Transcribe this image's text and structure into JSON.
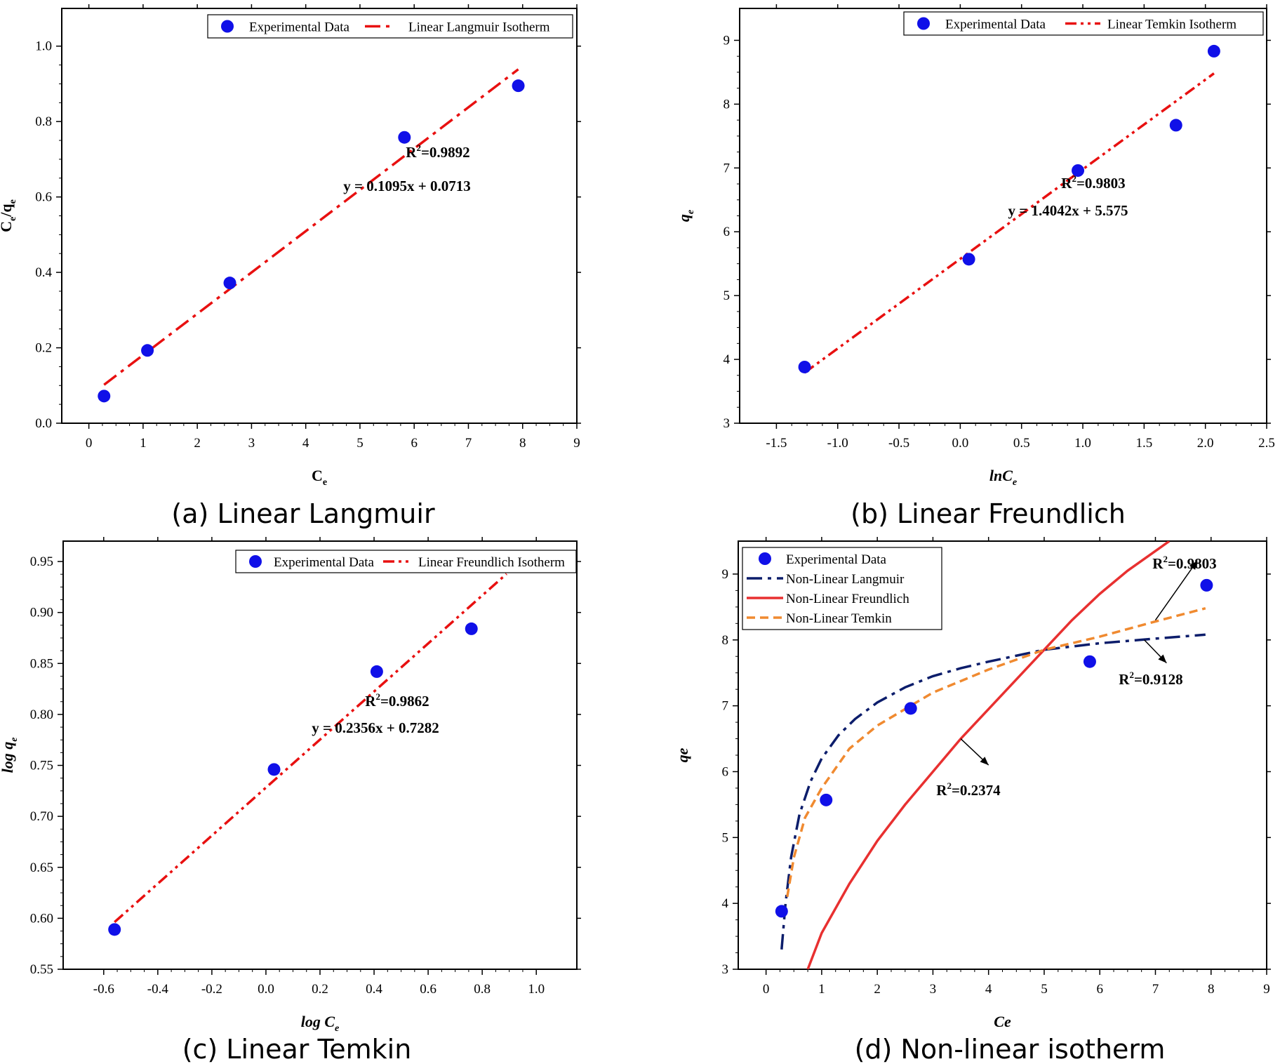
{
  "chart_data": [
    {
      "type": "scatter",
      "caption": "(a) Linear Langmuir",
      "xlabel": "C",
      "xlabel_sub": "e",
      "ylabel": "C",
      "ylabel_sub": "e",
      "ylabel_mid": "/q",
      "ylabel_sub2": "e",
      "xlim": [
        -0.5,
        9
      ],
      "ylim": [
        0,
        1.1
      ],
      "xticks": [
        0,
        1,
        2,
        3,
        4,
        5,
        6,
        7,
        8,
        9
      ],
      "yticks": [
        0.0,
        0.2,
        0.4,
        0.6,
        0.8,
        1.0
      ],
      "ytick_decimals": 1,
      "xtick_decimals": 0,
      "legend": {
        "placement": "top-right",
        "entries": [
          "Experimental Data",
          "Linear Langmuir Isotherm"
        ]
      },
      "series": [
        {
          "name": "Experimental Data",
          "kind": "points",
          "color": "#1010e8",
          "x": [
            0.28,
            1.08,
            2.6,
            5.82,
            7.92
          ],
          "y": [
            0.072,
            0.193,
            0.372,
            0.758,
            0.895
          ]
        },
        {
          "name": "Linear Langmuir Isotherm",
          "kind": "line",
          "dash": "dashdot",
          "color": "#e81010",
          "equation": {
            "slope": 0.1095,
            "intercept": 0.0713
          },
          "x_range": [
            0.28,
            7.92
          ]
        }
      ],
      "annotations": [
        {
          "text": "R",
          "sup": "2",
          "rest": "=0.9892",
          "at": [
            6.4,
            0.7
          ]
        },
        {
          "text": "y = 0.1095x + 0.0713",
          "at": [
            5.9,
            0.6
          ]
        }
      ]
    },
    {
      "type": "scatter",
      "caption": "(b) Linear Freundlich",
      "xlabel": "lnC",
      "xlabel_sub": "e",
      "ylabel": "q",
      "ylabel_sub": "e",
      "italic_labels": true,
      "xlim": [
        -1.8,
        2.5
      ],
      "ylim": [
        3,
        9.5
      ],
      "xticks": [
        -1.5,
        -1.0,
        -0.5,
        0.0,
        0.5,
        1.0,
        1.5,
        2.0,
        2.5
      ],
      "yticks": [
        3,
        4,
        5,
        6,
        7,
        8,
        9
      ],
      "xtick_decimals": 1,
      "ytick_decimals": 0,
      "legend": {
        "placement": "top-right",
        "entries": [
          "Experimental Data",
          "Linear Temkin Isotherm"
        ]
      },
      "series": [
        {
          "name": "Experimental Data",
          "kind": "points",
          "color": "#1010e8",
          "x": [
            -1.27,
            0.07,
            0.96,
            1.76,
            2.07
          ],
          "y": [
            3.88,
            5.57,
            6.96,
            7.67,
            8.83
          ]
        },
        {
          "name": "Linear Temkin Isotherm",
          "kind": "line",
          "dash": "dashdotdot",
          "color": "#e81010",
          "equation": {
            "slope": 1.4042,
            "intercept": 5.575
          },
          "x_range": [
            -1.27,
            2.07
          ]
        }
      ],
      "annotations": [
        {
          "text": "R",
          "sup": "2",
          "rest": "=0.9803",
          "at": [
            1.1,
            6.68
          ]
        },
        {
          "text": "y = 1.4042x + 5.575",
          "at": [
            0.88,
            6.3
          ]
        }
      ]
    },
    {
      "type": "scatter",
      "caption": "(c) Linear Temkin",
      "xlabel": "log C",
      "xlabel_sub": "e",
      "ylabel": "log q",
      "ylabel_sub": "e",
      "italic_labels": true,
      "xlim": [
        -0.75,
        1.15
      ],
      "ylim": [
        0.55,
        0.97
      ],
      "xticks": [
        -0.6,
        -0.4,
        -0.2,
        0.0,
        0.2,
        0.4,
        0.6,
        0.8,
        1.0
      ],
      "yticks": [
        0.55,
        0.6,
        0.65,
        0.7,
        0.75,
        0.8,
        0.85,
        0.9,
        0.95
      ],
      "xtick_decimals": 1,
      "ytick_decimals": 2,
      "legend": {
        "placement": "top-right",
        "entries": [
          "Experimental Data",
          "Linear Freundlich Isotherm"
        ]
      },
      "series": [
        {
          "name": "Experimental Data",
          "kind": "points",
          "color": "#1010e8",
          "x": [
            -0.56,
            0.03,
            0.41,
            0.76,
            0.89
          ],
          "y": [
            0.589,
            0.746,
            0.842,
            0.884,
            0.945
          ]
        },
        {
          "name": "Linear Freundlich Isotherm",
          "kind": "line",
          "dash": "dashdotdot",
          "color": "#e81010",
          "equation": {
            "slope": 0.2356,
            "intercept": 0.7282
          },
          "x_range": [
            -0.56,
            0.89
          ]
        }
      ],
      "annotations": [
        {
          "text": "R",
          "sup": "2",
          "rest": "=0.9862",
          "at": [
            0.44,
            0.817
          ]
        },
        {
          "text": "y = 0.2356x + 0.7282",
          "at": [
            0.37,
            0.79
          ]
        }
      ]
    },
    {
      "type": "line",
      "caption": "(d) Non-linear isotherm",
      "xlabel": "Ce",
      "ylabel": "qe",
      "italic_labels": true,
      "xlim": [
        -0.5,
        9
      ],
      "ylim": [
        3,
        9.5
      ],
      "xticks": [
        0,
        1,
        2,
        3,
        4,
        5,
        6,
        7,
        8,
        9
      ],
      "yticks": [
        3,
        4,
        5,
        6,
        7,
        8,
        9
      ],
      "xtick_decimals": 0,
      "ytick_decimals": 0,
      "legend": {
        "placement": "top-left",
        "entries": [
          "Experimental Data",
          "Non-Linear Langmuir",
          "Non-Linear Freundlich",
          "Non-Linear Temkin"
        ]
      },
      "series": [
        {
          "name": "Experimental Data",
          "kind": "points",
          "color": "#1010e8",
          "x": [
            0.28,
            1.08,
            2.6,
            5.82,
            7.92
          ],
          "y": [
            3.88,
            5.57,
            6.96,
            7.67,
            8.83
          ]
        },
        {
          "name": "Non-Linear Langmuir",
          "kind": "curve",
          "dash": "dashdot",
          "color": "#0c1d6b",
          "x": [
            0.28,
            0.35,
            0.45,
            0.6,
            0.8,
            1.0,
            1.3,
            1.6,
            2.0,
            2.5,
            3.0,
            3.5,
            4.0,
            5.0,
            6.0,
            7.0,
            7.9
          ],
          "y": [
            3.3,
            4.0,
            4.7,
            5.35,
            5.85,
            6.2,
            6.55,
            6.8,
            7.05,
            7.28,
            7.45,
            7.57,
            7.67,
            7.85,
            7.95,
            8.02,
            8.08
          ]
        },
        {
          "name": "Non-Linear Freundlich",
          "kind": "curve",
          "dash": "solid",
          "color": "#e83030",
          "x": [
            0.75,
            1.0,
            1.5,
            2.0,
            2.5,
            3.0,
            3.5,
            4.0,
            4.5,
            5.0,
            5.5,
            6.0,
            6.5,
            7.0,
            7.25
          ],
          "y": [
            3.0,
            3.55,
            4.3,
            4.95,
            5.5,
            6.0,
            6.5,
            6.95,
            7.4,
            7.85,
            8.3,
            8.7,
            9.05,
            9.35,
            9.5
          ]
        },
        {
          "name": "Non-Linear Temkin",
          "kind": "curve",
          "dash": "dashed",
          "color": "#f08a30",
          "x": [
            0.38,
            0.5,
            0.7,
            1.0,
            1.5,
            2.0,
            2.5,
            3.0,
            4.0,
            5.0,
            6.0,
            7.0,
            7.9
          ],
          "y": [
            4.1,
            4.7,
            5.3,
            5.75,
            6.35,
            6.7,
            6.95,
            7.2,
            7.55,
            7.85,
            8.05,
            8.28,
            8.48
          ]
        }
      ],
      "annotations": [
        {
          "text": "R",
          "sup": "2",
          "rest": "=0.9803",
          "at": [
            7.5,
            9.2
          ]
        },
        {
          "text": "R",
          "sup": "2",
          "rest": "=0.9128",
          "at": [
            6.9,
            7.28
          ]
        },
        {
          "text": "R",
          "sup": "2",
          "rest": "=0.2374",
          "at": [
            2.75,
            5.7
          ]
        }
      ],
      "arrows": [
        {
          "from": [
            7.0,
            8.3
          ],
          "to": [
            7.75,
            9.2
          ]
        },
        {
          "from": [
            6.8,
            8.0
          ],
          "to": [
            7.2,
            7.65
          ]
        },
        {
          "from": [
            3.5,
            6.5
          ],
          "to": [
            4.0,
            6.1
          ]
        }
      ]
    }
  ]
}
